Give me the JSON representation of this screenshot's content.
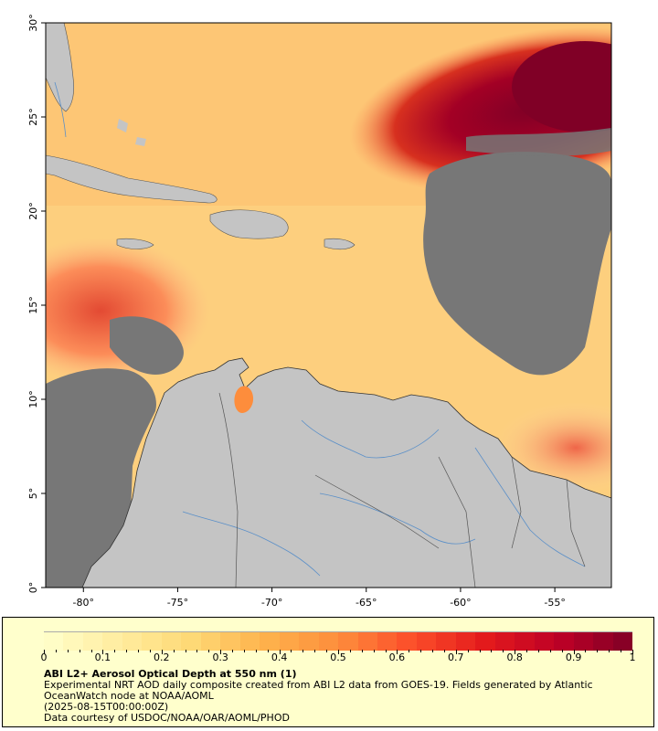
{
  "map": {
    "lon_range": [
      -82,
      -52
    ],
    "lat_range": [
      0,
      30
    ],
    "x_tick_labels": [
      "-80°",
      "-75°",
      "-70°",
      "-65°",
      "-60°",
      "-55°"
    ],
    "y_tick_labels": [
      "0°",
      "5°",
      "10°",
      "15°",
      "20°",
      "25°",
      "30°"
    ],
    "land_color": "#c4c4c4",
    "no_data_color": "#777777",
    "coast_color": "#333333",
    "river_color": "#5a8fc8"
  },
  "colorbar": {
    "range": [
      0,
      1
    ],
    "tick_labels": [
      "0",
      "0.1",
      "0.2",
      "0.3",
      "0.4",
      "0.5",
      "0.6",
      "0.7",
      "0.8",
      "0.9",
      "1"
    ],
    "colors": [
      "#ffffcc",
      "#ffeda0",
      "#fed976",
      "#feb24c",
      "#fd8d3c",
      "#fc4e2a",
      "#e31a1c",
      "#bd0026",
      "#800026"
    ]
  },
  "legend": {
    "title": "ABI L2+ Aerosol Optical Depth at 550 nm (1)",
    "description": "Experimental NRT AOD daily composite created from ABI L2 data from GOES-19. Fields generated by Atlantic OceanWatch node at NOAA/AOML",
    "date": "(2025-08-15T00:00:00Z)",
    "credit": "Data courtesy of USDOC/NOAA/OAR/AOML/PHOD"
  }
}
